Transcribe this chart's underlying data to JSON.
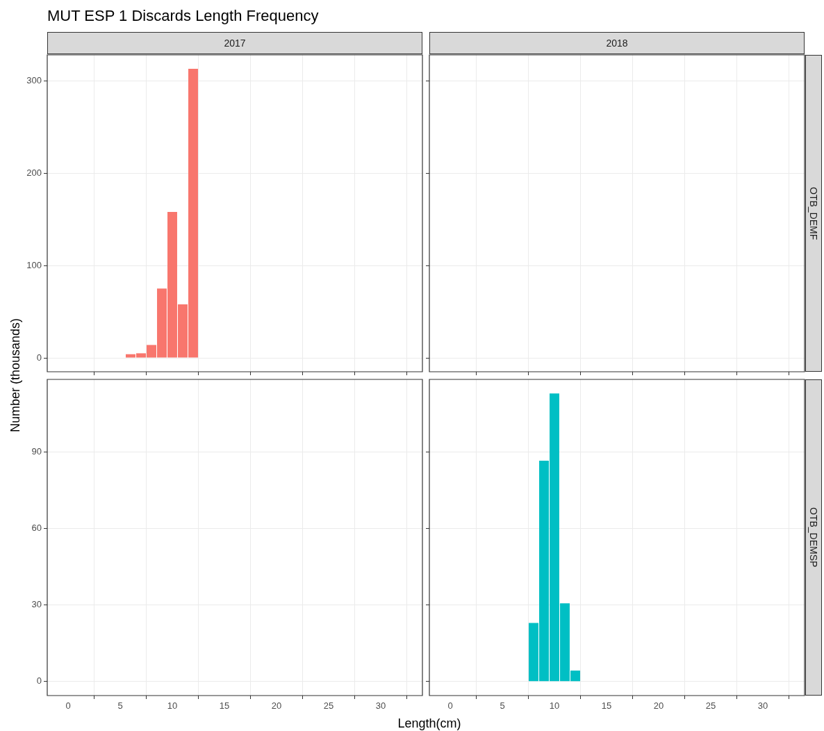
{
  "chart_data": [
    {
      "type": "histogram",
      "title": "MUT ESP 1 Discards Length Frequency",
      "subtitle": "2017",
      "ylabel": "Number  (thousands)",
      "bins": [
        5.5,
        6.5,
        7.5,
        8.5,
        9.5,
        10.5,
        11.5,
        12.5
      ],
      "values": [
        4,
        5,
        14,
        75,
        158,
        58,
        313
      ],
      "color": "#f8766d",
      "xlim": [
        -2,
        34
      ],
      "xticks": [
        0,
        5,
        10,
        15,
        20,
        25,
        30
      ],
      "ylim": [
        -15,
        328
      ],
      "yticks": [
        0,
        100,
        200,
        300
      ],
      "grid": true,
      "tick_labels": "y"
    },
    {
      "type": "histogram",
      "subtitle": "2018",
      "y2label": "OTB_DEMF",
      "xlim": [
        -2,
        34
      ],
      "xticks": [
        0,
        5,
        10,
        15,
        20,
        25,
        30
      ],
      "ylim": [
        -15,
        328
      ],
      "yticks": [
        0,
        100,
        200,
        300
      ],
      "grid": true,
      "tick_labels": false
    },
    {
      "type": "histogram",
      "xlim": [
        -2,
        34
      ],
      "xticks": [
        0,
        5,
        10,
        15,
        20,
        25,
        30
      ],
      "ylim": [
        -5.5,
        118.5
      ],
      "yticks": [
        0,
        30,
        60,
        90
      ],
      "grid": true
    },
    {
      "type": "histogram",
      "xlabel": "Length(cm)",
      "y2label": "OTB_DEMSP",
      "bins": [
        7.5,
        8.5,
        9.5,
        10.5,
        11.5,
        12.5
      ],
      "values": [
        23,
        86.6,
        113,
        30.7,
        4.3
      ],
      "color": "#00bfc4",
      "xlim": [
        -2,
        34
      ],
      "xticks": [
        0,
        5,
        10,
        15,
        20,
        25,
        30
      ],
      "ylim": [
        -5.5,
        118.5
      ],
      "yticks": [
        0,
        30,
        60,
        90
      ],
      "grid": true,
      "tick_labels": "x"
    }
  ]
}
